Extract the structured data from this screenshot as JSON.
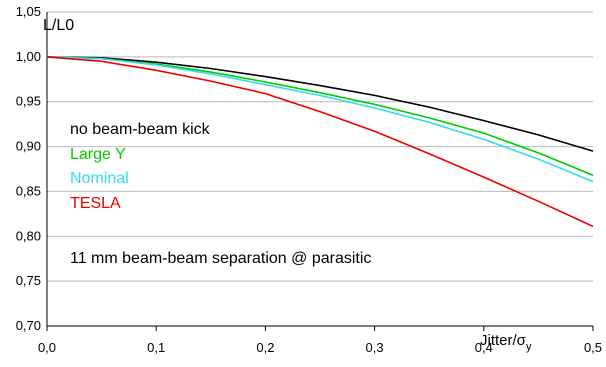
{
  "chart_data": {
    "type": "line",
    "ylabel": "L/L0",
    "xlabel_main": "Jitter/σ",
    "xlabel_sub": "y",
    "xlim": [
      0.0,
      0.5
    ],
    "ylim": [
      0.7,
      1.05
    ],
    "x_ticks": [
      "0,0",
      "0,1",
      "0,2",
      "0,3",
      "0,4",
      "0,5"
    ],
    "y_ticks": [
      "0,70",
      "0,75",
      "0,80",
      "0,85",
      "0,90",
      "0,95",
      "1,00",
      "1,05"
    ],
    "grid": "horizontal",
    "annotation": "11 mm beam-beam separation @ parasitic",
    "x": [
      0.0,
      0.05,
      0.1,
      0.15,
      0.2,
      0.25,
      0.3,
      0.35,
      0.4,
      0.45,
      0.5
    ],
    "series": [
      {
        "name": "no beam-beam kick",
        "color": "#000000",
        "values": [
          1.0,
          0.999,
          0.994,
          0.987,
          0.978,
          0.968,
          0.957,
          0.944,
          0.929,
          0.913,
          0.895
        ]
      },
      {
        "name": "Large Y",
        "color": "#00cc00",
        "values": [
          1.0,
          0.998,
          0.992,
          0.983,
          0.972,
          0.96,
          0.947,
          0.932,
          0.915,
          0.893,
          0.868
        ]
      },
      {
        "name": "Nominal",
        "color": "#33ddee",
        "values": [
          1.0,
          0.998,
          0.991,
          0.981,
          0.969,
          0.957,
          0.943,
          0.927,
          0.908,
          0.886,
          0.861
        ]
      },
      {
        "name": "TESLA",
        "color": "#ee0000",
        "values": [
          1.0,
          0.995,
          0.985,
          0.973,
          0.959,
          0.939,
          0.917,
          0.892,
          0.866,
          0.839,
          0.811
        ]
      }
    ]
  }
}
